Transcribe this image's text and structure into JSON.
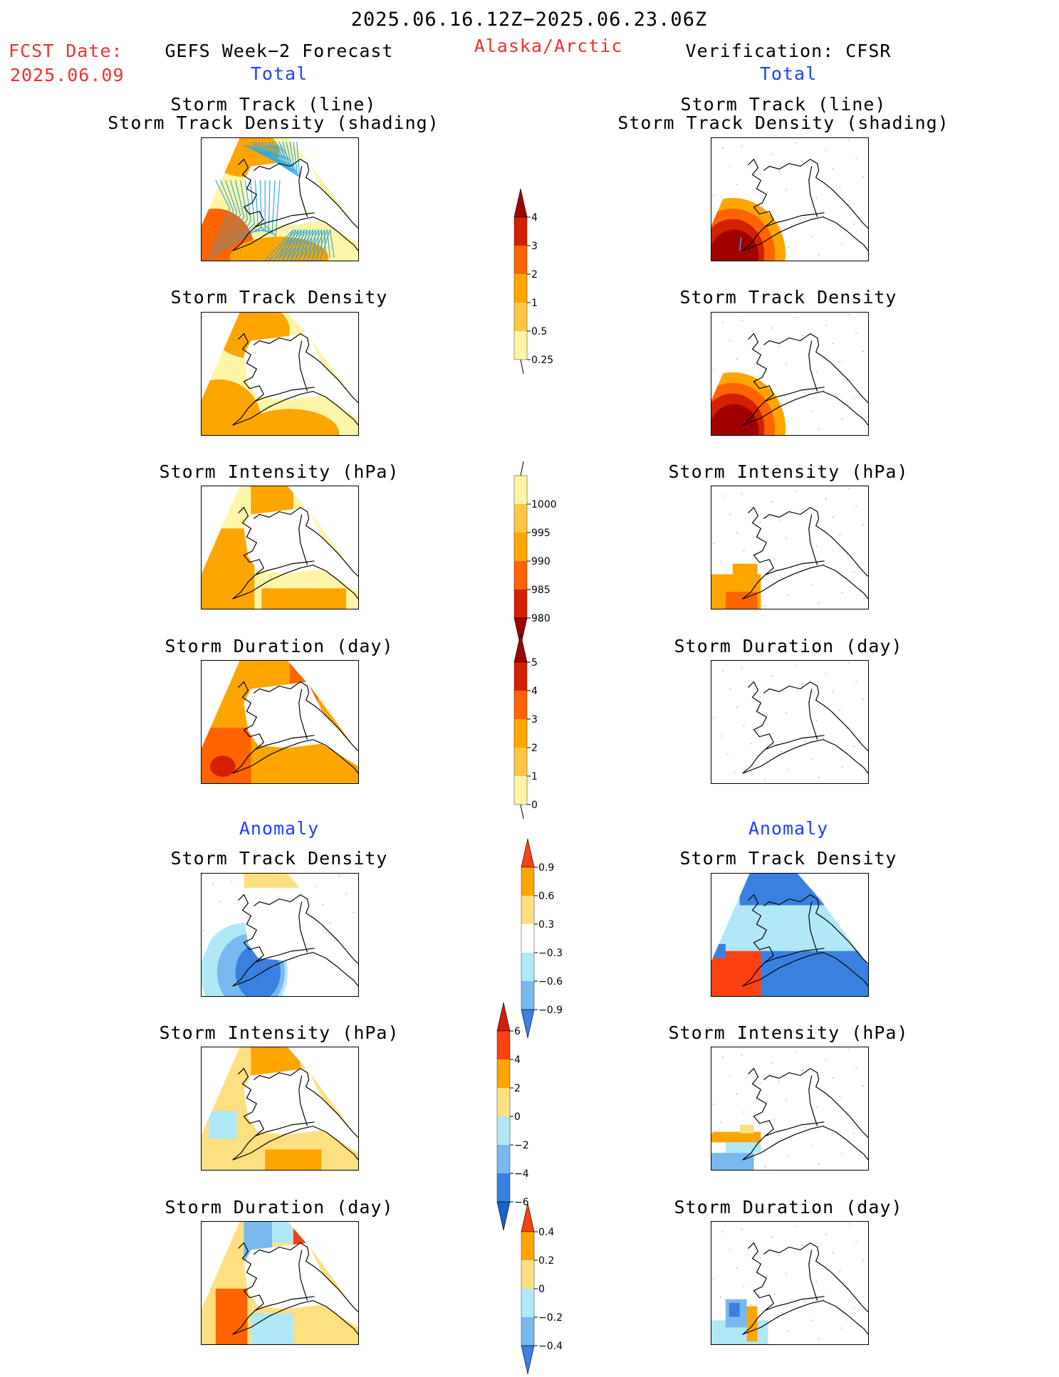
{
  "header": {
    "date_range": "2025.06.16.12Z−2025.06.23.06Z",
    "fcst_label": "FCST Date:",
    "fcst_date": "2025.06.09",
    "left_title": "GEFS Week−2 Forecast",
    "region": "Alaska/Arctic",
    "right_title": "Verification: CFSR"
  },
  "sections": {
    "total": "Total",
    "anomaly": "Anomaly"
  },
  "panel_titles": {
    "track_line": "Storm Track (line)",
    "track_density_shading": "Storm Track Density (shading)",
    "track_density": "Storm Track Density",
    "intensity": "Storm Intensity (hPa)",
    "duration": "Storm Duration (day)"
  },
  "colorbars": {
    "total_density": {
      "ticks": [
        "4",
        "3",
        "2",
        "1",
        "0.5",
        "0.25"
      ],
      "colors": [
        "#a00000",
        "#d42000",
        "#ff6400",
        "#ffa500",
        "#ffc844",
        "#fff5a8"
      ]
    },
    "total_intensity": {
      "ticks": [
        "1000",
        "995",
        "990",
        "985",
        "980"
      ],
      "colors": [
        "#fff5a8",
        "#ffc844",
        "#ffa500",
        "#ff6400",
        "#d42000",
        "#a00000"
      ]
    },
    "total_duration": {
      "ticks": [
        "5",
        "4",
        "3",
        "2",
        "1",
        "0"
      ],
      "colors": [
        "#a00000",
        "#d42000",
        "#ff6400",
        "#ffa500",
        "#ffc844",
        "#fff5a8"
      ]
    },
    "anom_density": {
      "ticks": [
        "0.9",
        "0.6",
        "0.3",
        "−0.3",
        "−0.6",
        "−0.9"
      ],
      "colors": [
        "#ff4010",
        "#ffa500",
        "#ffe080",
        "#ffffff",
        "#b0e8f8",
        "#7ab8f0",
        "#3a80e0"
      ]
    },
    "anom_intensity": {
      "ticks": [
        "6",
        "4",
        "2",
        "0",
        "−2",
        "−4",
        "−6"
      ],
      "colors": [
        "#d02010",
        "#ff4010",
        "#ffa500",
        "#ffe080",
        "#b0e8f8",
        "#7ab8f0",
        "#3a80e0",
        "#1a60d0"
      ]
    },
    "anom_duration": {
      "ticks": [
        "0.4",
        "0.2",
        "0",
        "−0.2",
        "−0.4"
      ],
      "colors": [
        "#ff4010",
        "#ffa500",
        "#ffe080",
        "#b0e8f8",
        "#7ab8f0",
        "#3a80e0"
      ]
    }
  }
}
